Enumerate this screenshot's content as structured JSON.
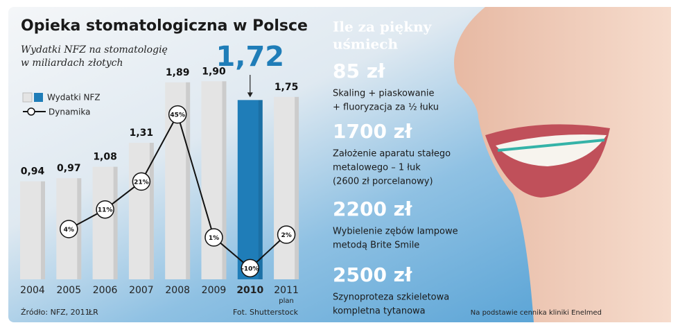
{
  "chart_data": {
    "type": "bar",
    "title": "Opieka stomatologiczna w Polsce",
    "subtitle": [
      "Wydatki NFZ na stomatologię",
      "w miliardach złotych"
    ],
    "categories": [
      "2004",
      "2005",
      "2006",
      "2007",
      "2008",
      "2009",
      "2010",
      "2011"
    ],
    "category_notes": [
      null,
      null,
      null,
      null,
      null,
      null,
      null,
      "plan"
    ],
    "series": [
      {
        "name": "Wydatki NFZ",
        "type": "bar",
        "color": "#e4e4e4",
        "colors": [
          "#e4e4e4",
          "#e4e4e4",
          "#e4e4e4",
          "#e4e4e4",
          "#e4e4e4",
          "#e4e4e4",
          "#1f7db8",
          "#e4e4e4"
        ],
        "values": [
          0.94,
          0.97,
          1.08,
          1.31,
          1.89,
          1.9,
          1.72,
          1.75
        ],
        "value_labels": [
          "0,94",
          "0,97",
          "1,08",
          "1,31",
          "1,89",
          "1,90",
          "1,72",
          "1,75"
        ]
      },
      {
        "name": "Dynamika",
        "type": "line",
        "axis": "y2",
        "color": "#111111",
        "values": [
          null,
          4,
          11,
          21,
          45,
          1,
          -10,
          2
        ],
        "value_labels": [
          null,
          "4%",
          "11%",
          "21%",
          "45%",
          "1%",
          "-10%",
          "2%"
        ]
      }
    ],
    "ylim": [
      0,
      2.6
    ],
    "y2lim": [
      -14,
      83
    ],
    "legend": "top-left",
    "source": "Źródło: NFZ, 2011",
    "author": "ŁR",
    "photo_credit": "Fot. Shutterstock"
  },
  "panel": {
    "title": [
      "Ile za piękny",
      "uśmiech"
    ],
    "items": [
      {
        "price": "85 zł",
        "description": [
          "Skaling + piaskowanie",
          "+ fluoryzacja za ½ łuku"
        ]
      },
      {
        "price": "1700 zł",
        "description": [
          "Założenie aparatu stałego",
          "metalowego – 1 łuk",
          "(2600 zł porcelanowy)"
        ]
      },
      {
        "price": "2200 zł",
        "description": [
          "Wybielenie zębów lampowe",
          "metodą Brite Smile"
        ]
      },
      {
        "price": "2500 zł",
        "description": [
          "Szynoproteza szkieletowa",
          "kompletna tytanowa"
        ]
      }
    ],
    "footnote": "Na podstawie cennika kliniki Enelmed"
  }
}
